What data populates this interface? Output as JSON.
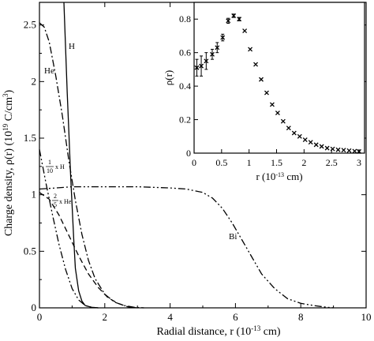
{
  "chart_data": [
    {
      "type": "line",
      "xlabel_main": "Radial distance, r (10",
      "xlabel_exp": "-13",
      "xlabel_tail": " cm)",
      "ylabel_main": "Charge density, ρ(r) (10",
      "ylabel_exp": "19",
      "ylabel_mid": " C/cm",
      "ylabel_exp2": "3",
      "ylabel_tail": ")",
      "xlim": [
        0,
        10
      ],
      "ylim": [
        0,
        2.7
      ],
      "x_ticks": [
        "0",
        "2",
        "4",
        "6",
        "8",
        "10"
      ],
      "y_ticks": [
        "0",
        "0.5",
        "1",
        "1.5",
        "2",
        "2.5"
      ],
      "grid": false,
      "series": [
        {
          "name": "H",
          "style": "solid",
          "x": [
            0.75,
            0.8,
            0.85,
            0.9,
            0.95,
            1.0,
            1.05,
            1.1,
            1.2,
            1.3,
            1.4,
            1.6,
            1.8
          ],
          "y": [
            2.7,
            2.3,
            1.9,
            1.55,
            1.2,
            0.9,
            0.6,
            0.35,
            0.15,
            0.06,
            0.02,
            0.005,
            0.0
          ]
        },
        {
          "name": "He",
          "style": "dashdot",
          "x": [
            0.0,
            0.15,
            0.3,
            0.5,
            0.7,
            0.9,
            1.1,
            1.3,
            1.5,
            1.7,
            2.0,
            2.3,
            2.6,
            2.9,
            3.2
          ],
          "y": [
            2.52,
            2.48,
            2.35,
            2.05,
            1.7,
            1.3,
            0.95,
            0.65,
            0.42,
            0.26,
            0.12,
            0.05,
            0.02,
            0.005,
            0.0
          ]
        },
        {
          "name": "1/10 x H",
          "label_num": "1",
          "label_den": "10",
          "label_suffix": "x H",
          "style": "dashdotdot",
          "x": [
            0.0,
            0.2,
            0.4,
            0.6,
            0.8,
            1.0,
            1.2,
            1.4,
            1.6,
            1.8
          ],
          "y": [
            1.4,
            1.1,
            0.82,
            0.56,
            0.34,
            0.17,
            0.07,
            0.02,
            0.005,
            0.0
          ]
        },
        {
          "name": "2/5 x He",
          "label_num": "2",
          "label_den": "5",
          "label_suffix": "x He",
          "style": "dashed",
          "x": [
            0.0,
            0.3,
            0.6,
            0.9,
            1.2,
            1.5,
            1.8,
            2.1,
            2.4,
            2.7,
            3.0
          ],
          "y": [
            1.02,
            0.96,
            0.82,
            0.64,
            0.46,
            0.3,
            0.18,
            0.09,
            0.04,
            0.01,
            0.0
          ]
        },
        {
          "name": "Bi",
          "style": "dashdotdot",
          "x": [
            0.0,
            0.5,
            1.0,
            2.0,
            3.0,
            4.0,
            4.5,
            5.0,
            5.3,
            5.6,
            5.9,
            6.2,
            6.5,
            6.8,
            7.2,
            7.6,
            8.0,
            8.4,
            8.8,
            9.0
          ],
          "y": [
            1.05,
            1.06,
            1.07,
            1.07,
            1.07,
            1.06,
            1.05,
            1.02,
            0.97,
            0.88,
            0.75,
            0.6,
            0.45,
            0.3,
            0.17,
            0.08,
            0.04,
            0.02,
            0.005,
            0.0
          ]
        }
      ]
    },
    {
      "type": "scatter",
      "xlabel_main": "r (10",
      "xlabel_exp": "-13",
      "xlabel_tail": " cm)",
      "ylabel": "ρ(r)",
      "xlim": [
        0,
        3.1
      ],
      "ylim": [
        0,
        0.9
      ],
      "x_ticks": [
        "0",
        "0.5",
        "1",
        "1.5",
        "2",
        "2.5",
        "3"
      ],
      "y_ticks": [
        "0",
        "0.2",
        "0.4",
        "0.6",
        "0.8"
      ],
      "grid": false,
      "points": [
        {
          "x": 0.05,
          "y": 0.51,
          "err": 0.05
        },
        {
          "x": 0.13,
          "y": 0.52,
          "err": 0.06
        },
        {
          "x": 0.22,
          "y": 0.55,
          "err": 0.05
        },
        {
          "x": 0.33,
          "y": 0.59,
          "err": 0.03
        },
        {
          "x": 0.42,
          "y": 0.63,
          "err": 0.03
        },
        {
          "x": 0.52,
          "y": 0.69,
          "err": 0.02
        },
        {
          "x": 0.62,
          "y": 0.79,
          "err": 0.015
        },
        {
          "x": 0.72,
          "y": 0.82,
          "err": 0.01
        },
        {
          "x": 0.82,
          "y": 0.8,
          "err": 0.01
        },
        {
          "x": 0.92,
          "y": 0.73,
          "err": 0.0
        },
        {
          "x": 1.02,
          "y": 0.62,
          "err": 0.0
        },
        {
          "x": 1.12,
          "y": 0.53,
          "err": 0.0
        },
        {
          "x": 1.22,
          "y": 0.44,
          "err": 0.0
        },
        {
          "x": 1.32,
          "y": 0.36,
          "err": 0.0
        },
        {
          "x": 1.42,
          "y": 0.29,
          "err": 0.0
        },
        {
          "x": 1.52,
          "y": 0.24,
          "err": 0.0
        },
        {
          "x": 1.62,
          "y": 0.19,
          "err": 0.0
        },
        {
          "x": 1.72,
          "y": 0.15,
          "err": 0.0
        },
        {
          "x": 1.82,
          "y": 0.12,
          "err": 0.0
        },
        {
          "x": 1.92,
          "y": 0.1,
          "err": 0.0
        },
        {
          "x": 2.02,
          "y": 0.08,
          "err": 0.0
        },
        {
          "x": 2.12,
          "y": 0.065,
          "err": 0.0
        },
        {
          "x": 2.22,
          "y": 0.05,
          "err": 0.0
        },
        {
          "x": 2.32,
          "y": 0.04,
          "err": 0.0
        },
        {
          "x": 2.42,
          "y": 0.03,
          "err": 0.0
        },
        {
          "x": 2.52,
          "y": 0.025,
          "err": 0.0
        },
        {
          "x": 2.62,
          "y": 0.02,
          "err": 0.0
        },
        {
          "x": 2.72,
          "y": 0.018,
          "err": 0.0
        },
        {
          "x": 2.82,
          "y": 0.015,
          "err": 0.0
        },
        {
          "x": 2.92,
          "y": 0.012,
          "err": 0.0
        },
        {
          "x": 3.0,
          "y": 0.01,
          "err": 0.0
        }
      ]
    }
  ]
}
